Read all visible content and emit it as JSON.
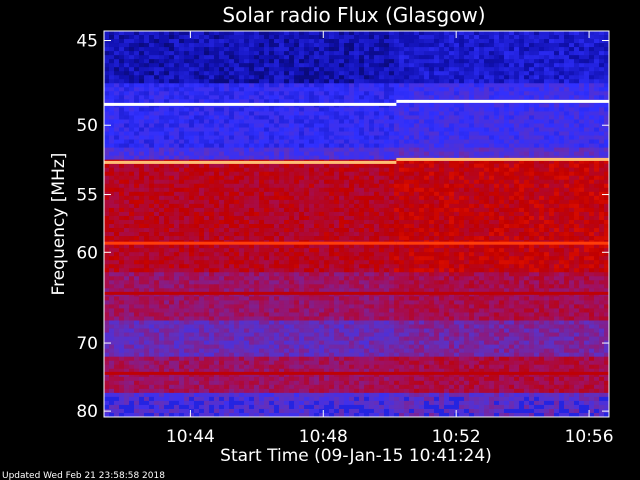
{
  "chart_data": {
    "type": "heatmap",
    "title": "Solar radio Flux (Glasgow)",
    "xlabel": "Start Time (09-Jan-15 10:41:24)",
    "ylabel": "Frequency [MHz]",
    "x_ticks": [
      "10:44",
      "10:48",
      "10:52",
      "10:56"
    ],
    "x_tick_minutes": [
      2.6,
      6.6,
      10.6,
      14.6
    ],
    "xlim_minutes": [
      0,
      15.2
    ],
    "y_ticks": [
      45,
      50,
      55,
      60,
      70,
      80
    ],
    "ylim": [
      44.5,
      81
    ],
    "y_scale": "reciprocal",
    "colormap": [
      "#000020",
      "#1010b0",
      "#3030ff",
      "#6030c0",
      "#a01060",
      "#c00000",
      "#ff2000",
      "#ff8020",
      "#ffe0a0",
      "#ffffff"
    ],
    "bright_lines_mhz": [
      {
        "freq": 48.7,
        "level": 1.0
      },
      {
        "freq": 52.6,
        "level": 0.85
      },
      {
        "freq": 59.2,
        "level": 0.7
      },
      {
        "freq": 64.2,
        "level": 0.55
      },
      {
        "freq": 74.2,
        "level": 0.55
      }
    ],
    "segment_break_minute": 8.8
  },
  "footer": {
    "updated": "Updated Wed Feb 21 23:58:58 2018"
  }
}
